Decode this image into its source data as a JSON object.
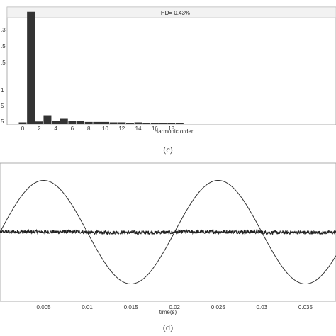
{
  "chart_data": [
    {
      "type": "bar",
      "panel": "(c)",
      "thd_label": "THD= 0.43%",
      "xlabel": "Harmonic order",
      "ylabel": "",
      "x_ticks": [
        "0",
        "2",
        "4",
        "6",
        "8",
        "10",
        "12",
        "14",
        "16",
        "18"
      ],
      "y_ticks": [
        ".3",
        ".5",
        ".5",
        "1",
        "5",
        "5"
      ],
      "categories": [
        0,
        1,
        2,
        3,
        4,
        5,
        6,
        7,
        8,
        9,
        10,
        11,
        12,
        13,
        14,
        15,
        16,
        17,
        18,
        19
      ],
      "values": [
        0.4,
        25.4,
        0.6,
        2.0,
        0.7,
        1.2,
        0.8,
        0.8,
        0.5,
        0.5,
        0.5,
        0.4,
        0.4,
        0.3,
        0.4,
        0.3,
        0.3,
        0.2,
        0.3,
        0.2
      ],
      "ylim": [
        0,
        26
      ],
      "grid": false,
      "colors": {
        "bar": "#333333",
        "frame": "#999999",
        "title_bar": "#f2f2f2"
      }
    },
    {
      "type": "line",
      "panel": "(d)",
      "xlabel": "time(s)",
      "ylabel": "",
      "x_ticks": [
        "0.005",
        "0.01",
        "0.015",
        "0.02",
        "0.025",
        "0.03",
        "0.035"
      ],
      "xlim": [
        0.0,
        0.0385
      ],
      "ylim": [
        -1.1,
        1.1
      ],
      "series": [
        {
          "kind": "sinusoid",
          "amplitude": 1.0,
          "frequency_hz": 50,
          "values_at_ticks": [
            1.0,
            0.0,
            -1.0,
            0.0,
            1.0,
            0.0,
            -1.0
          ],
          "color": "#333333"
        },
        {
          "kind": "ripple",
          "mean": 0.0,
          "peak_noise": 0.035,
          "step_times": [
            0.01,
            0.02,
            0.03
          ],
          "step_size": 0.025,
          "color": "#222222"
        }
      ],
      "grid": false,
      "colors": {
        "frame": "#999999"
      }
    }
  ]
}
